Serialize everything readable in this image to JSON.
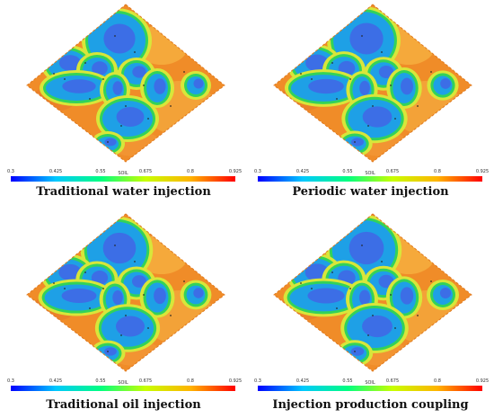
{
  "colorbar": {
    "label": "SOIL",
    "ticks": [
      "0.3",
      "0.425",
      "0.55",
      "0.675",
      "0.8",
      "0.925"
    ],
    "colors": [
      "#0000ff",
      "#00c8ff",
      "#00ff80",
      "#c8ff00",
      "#ffb400",
      "#ff0000"
    ]
  },
  "panels": [
    {
      "caption": "Traditional water injection"
    },
    {
      "caption": "Periodic water injection"
    },
    {
      "caption": "Traditional oil injection"
    },
    {
      "caption": "Injection production coupling"
    }
  ]
}
